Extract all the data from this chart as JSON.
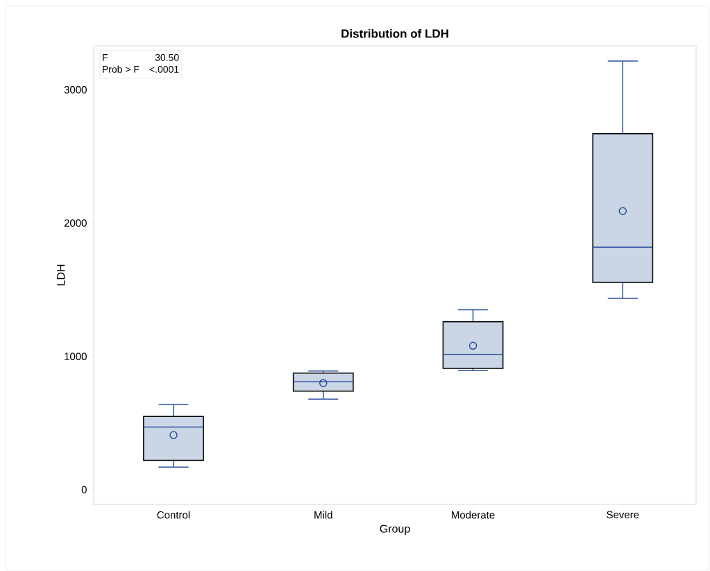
{
  "chart_data": {
    "type": "box",
    "title": "Distribution of LDH",
    "xlabel": "Group",
    "ylabel": "LDH",
    "categories": [
      "Control",
      "Mild",
      "Moderate",
      "Severe"
    ],
    "boxes": [
      {
        "low": 170,
        "q1": 220,
        "median": 470,
        "q3": 550,
        "high": 640,
        "mean": 410
      },
      {
        "low": 680,
        "q1": 740,
        "median": 810,
        "q3": 875,
        "high": 890,
        "mean": 800
      },
      {
        "low": 895,
        "q1": 910,
        "median": 1015,
        "q3": 1260,
        "high": 1350,
        "mean": 1080
      },
      {
        "low": 1435,
        "q1": 1555,
        "median": 1820,
        "q3": 2670,
        "high": 3215,
        "mean": 2090
      }
    ],
    "color": "#cad5e5",
    "ylim": [
      -110,
      3330
    ],
    "yticks": [
      0,
      1000,
      2000,
      3000
    ],
    "marker": "circle",
    "grid": false,
    "annotations": [
      "F",
      "30.50",
      "Prob > F",
      "<.0001"
    ]
  }
}
